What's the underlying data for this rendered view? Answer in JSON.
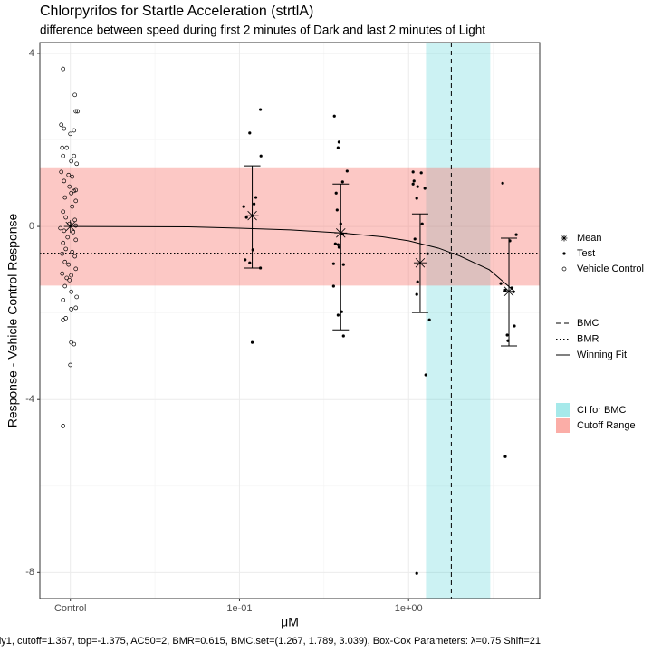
{
  "chart_data": {
    "type": "scatter",
    "title": "Chlorpyrifos for Startle Acceleration (strtlA)",
    "subtitle": "difference between speed during first 2 minutes of Dark and last 2 minutes of Light",
    "x_label": "μM",
    "y_label": "Response - Vehicle Control Response",
    "caption": "ly1, cutoff=1.367, top=-1.375, AC50=2, BMR=0.615, BMC.set=(1.267, 1.789, 3.039), Box-Cox Parameters: λ=0.75 Shift=21",
    "log_x": true,
    "grid": true,
    "xlim": [
      0.0066,
      5.96
    ],
    "xticks": [
      {
        "value": 0.01,
        "label": "Control"
      },
      {
        "value": 0.1,
        "label": "1e-01"
      },
      {
        "value": 1,
        "label": "1e+00"
      }
    ],
    "ylim": [
      -8.6,
      4.25
    ],
    "yticks": [
      4,
      0,
      -4,
      -8
    ],
    "bands": [
      {
        "name": "CI for BMC",
        "color": "#00bfc4",
        "x": [
          1.267,
          3.039
        ]
      },
      {
        "name": "Cutoff Range",
        "color": "#f8766d",
        "y": [
          -1.367,
          1.367
        ]
      }
    ],
    "lines": [
      {
        "name": "BMC",
        "style": "dashed",
        "x": 1.789
      },
      {
        "name": "BMR",
        "style": "dotted",
        "y": -0.615
      },
      {
        "name": "Winning Fit",
        "style": "solid",
        "x": [
          0.01,
          0.05,
          0.1,
          0.2,
          0.4,
          0.7,
          1,
          1.5,
          2,
          3,
          4.2
        ],
        "values": [
          0,
          -0.01,
          -0.04,
          -0.08,
          -0.15,
          -0.24,
          -0.33,
          -0.5,
          -0.68,
          -1.0,
          -1.49
        ]
      }
    ],
    "series": [
      {
        "name": "Mean",
        "marker": "asterisk",
        "x": [
          0.01,
          0.119,
          0.397,
          1.17,
          3.92
        ],
        "values": [
          0,
          0.25,
          -0.15,
          -0.84,
          -1.5
        ],
        "error_low": [
          null,
          -0.96,
          -2.39,
          -1.99,
          -2.76
        ],
        "error_high": [
          null,
          1.4,
          0.98,
          0.29,
          -0.27
        ]
      },
      {
        "name": "Test",
        "marker": "dot",
        "x": [
          0.133,
          0.115,
          0.134,
          0.106,
          0.125,
          0.11,
          0.12,
          0.108,
          0.115,
          0.133,
          0.119,
          0.122,
          0.364,
          0.388,
          0.383,
          0.433,
          0.407,
          0.373,
          0.378,
          0.397,
          0.407,
          0.383,
          0.36,
          0.412,
          0.388,
          0.36,
          0.402,
          0.383,
          0.412,
          0.369,
          1.063,
          1.188,
          1.063,
          1.131,
          1.248,
          1.117,
          1.203,
          1.09,
          1.295,
          1.131,
          1.117,
          1.264,
          1.117,
          1.327,
          1.077,
          3.6,
          4.33,
          3.97,
          3.51,
          3.73,
          4.07,
          4.17,
          4.22,
          3.83,
          3.87,
          3.73
        ],
        "values": [
          2.7,
          2.16,
          1.63,
          0.46,
          0.67,
          0.21,
          -0.54,
          -0.77,
          -0.84,
          -0.96,
          -2.68,
          0.52,
          2.55,
          1.95,
          1.82,
          1.28,
          1.03,
          0.77,
          0.38,
          0.06,
          -0.17,
          -0.42,
          -0.86,
          -0.88,
          -0.48,
          -1.38,
          -1.97,
          -2.05,
          -2.53,
          -0.4,
          1.26,
          1.24,
          0.98,
          0.92,
          0.88,
          0.65,
          0.06,
          -0.29,
          -0.63,
          -1.28,
          -1.57,
          -3.43,
          -8.02,
          -2.16,
          1.05,
          1.0,
          -0.19,
          -0.33,
          -1.32,
          -1.47,
          -1.42,
          -1.51,
          -2.3,
          -2.51,
          -2.64,
          -5.32
        ]
      },
      {
        "name": "Vehicle Control",
        "marker": "open-circle",
        "x": [
          0.00906,
          0.01063,
          0.01077,
          0.01104,
          0.00884,
          0.00918,
          0.01051,
          0.01,
          0.00895,
          0.00952,
          0.00906,
          0.01051,
          0.01012,
          0.0109,
          0.00884,
          0.00976,
          0.01025,
          0.00918,
          0.00988,
          0.01077,
          0.01051,
          0.01012,
          0.00929,
          0.01077,
          0.00906,
          0.01025,
          0.0094,
          0.01063,
          0.00988,
          0.01077,
          0.00873,
          0.00918,
          0.01038,
          0.00964,
          0.00906,
          0.01077,
          0.0094,
          0.01025,
          0.00895,
          0.01063,
          0.00929,
          0.00976,
          0.01077,
          0.00895,
          0.01012,
          0.00952,
          0.00988,
          0.00929,
          0.01012,
          0.0109,
          0.00906,
          0.01077,
          0.01012,
          0.0094,
          0.00906,
          0.01012,
          0.01051,
          0.01,
          0.00906
        ],
        "values": [
          3.64,
          3.04,
          2.66,
          2.66,
          2.35,
          2.26,
          2.22,
          2.14,
          1.82,
          1.82,
          1.63,
          1.63,
          1.51,
          1.45,
          1.26,
          1.19,
          1.15,
          1.05,
          0.92,
          0.84,
          0.82,
          0.77,
          0.67,
          0.59,
          0.34,
          0.46,
          0.21,
          0.15,
          0.06,
          0.02,
          -0.04,
          -0.1,
          -0.13,
          -0.25,
          -0.38,
          -0.31,
          -0.52,
          -0.59,
          -0.63,
          -0.69,
          -0.82,
          -0.88,
          -0.98,
          -1.09,
          -1.13,
          -1.19,
          -1.24,
          -1.38,
          -1.51,
          -1.63,
          -1.7,
          -1.88,
          -1.91,
          -2.12,
          -2.16,
          -2.68,
          -2.72,
          -3.2,
          -4.61
        ]
      }
    ]
  }
}
